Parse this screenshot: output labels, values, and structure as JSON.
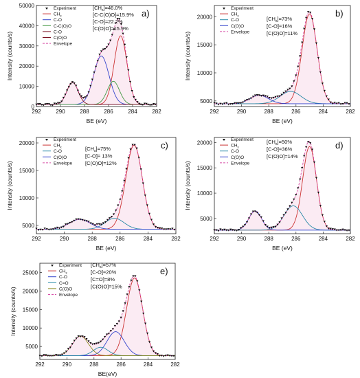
{
  "chart_data": [
    {
      "type": "line",
      "panel_label": "a)",
      "xlabel": "BE (eV)",
      "ylabel": "Intensity (counts/s)",
      "xlim": [
        292,
        282
      ],
      "x_reversed": true,
      "xticks": [
        292,
        290,
        288,
        286,
        284,
        282
      ],
      "ylim": [
        0,
        50000
      ],
      "yticks": [
        0,
        10000,
        20000,
        30000,
        40000,
        50000
      ],
      "baseline": 1000,
      "legend": [
        "Experiment",
        "CHx",
        "C-O",
        "C-C(O)O",
        "C-O",
        "C(O)O",
        "Envelope"
      ],
      "annotations": [
        "[CHx]=46.0%",
        "[C-C(O)O]=15.9%",
        "[C-O]=22.2%",
        "[C(O)O]=15.9%"
      ],
      "peaks": [
        {
          "name": "CHx",
          "center": 285.0,
          "height": 34000,
          "fwhm": 1.25,
          "color": "#cc3333"
        },
        {
          "name": "C-O",
          "center": 286.6,
          "height": 24000,
          "fwhm": 1.5,
          "color": "#3344cc"
        },
        {
          "name": "C-C(O)O",
          "center": 285.6,
          "height": 11500,
          "fwhm": 1.2,
          "color": "#449944"
        },
        {
          "name": "C(O)O",
          "center": 289.0,
          "height": 11000,
          "fwhm": 1.1,
          "color": "#7a1020"
        }
      ]
    },
    {
      "type": "line",
      "panel_label": "b)",
      "xlabel": "BE (eV)",
      "ylabel": "Intensity (counts/s)",
      "xlim": [
        292,
        282
      ],
      "x_reversed": true,
      "xticks": [
        292,
        290,
        288,
        286,
        284,
        282
      ],
      "ylim": [
        4000,
        22000
      ],
      "yticks": [
        5000,
        10000,
        15000,
        20000
      ],
      "baseline": 4500,
      "legend": [
        "Experiment",
        "CHx",
        "C-O",
        "C(O)O",
        "Envelope"
      ],
      "annotations": [
        "[CHx]=73%",
        "[C-O]=16%",
        "[C(O)O]=11%"
      ],
      "peaks": [
        {
          "name": "CHx",
          "center": 285.0,
          "height": 16000,
          "fwhm": 1.3,
          "color": "#cc3333"
        },
        {
          "name": "C-O",
          "center": 286.4,
          "height": 2200,
          "fwhm": 1.8,
          "color": "#2a8aa8"
        },
        {
          "name": "C(O)O",
          "center": 288.7,
          "height": 1500,
          "fwhm": 1.6,
          "color": "#3344cc"
        }
      ]
    },
    {
      "type": "line",
      "panel_label": "c)",
      "xlabel": "BE (eV)",
      "ylabel": "Intensity (counts/s)",
      "xlim": [
        292,
        282
      ],
      "x_reversed": true,
      "xticks": [
        292,
        290,
        288,
        286,
        284,
        282
      ],
      "ylim": [
        3500,
        21000
      ],
      "yticks": [
        5000,
        10000,
        15000,
        20000
      ],
      "baseline": 4300,
      "legend": [
        "Experiment",
        "CHx",
        "C-O",
        "C(O)O",
        "Envelope"
      ],
      "annotations": [
        "[CHx]=75%",
        "[C-O]= 13%",
        "[C(O)O]=12%"
      ],
      "peaks": [
        {
          "name": "CHx",
          "center": 285.0,
          "height": 15300,
          "fwhm": 1.4,
          "color": "#cc3333"
        },
        {
          "name": "C-O",
          "center": 286.4,
          "height": 2000,
          "fwhm": 1.6,
          "color": "#2a8aa8"
        },
        {
          "name": "C(O)O",
          "center": 288.9,
          "height": 1800,
          "fwhm": 1.8,
          "color": "#3344cc"
        }
      ]
    },
    {
      "type": "line",
      "panel_label": "d)",
      "xlabel": "BE (eV)",
      "ylabel": "Intensity (counts/s)",
      "xlim": [
        292,
        282
      ],
      "x_reversed": true,
      "xticks": [
        292,
        290,
        288,
        286,
        284,
        282
      ],
      "ylim": [
        2000,
        21000
      ],
      "yticks": [
        5000,
        10000,
        15000,
        20000
      ],
      "baseline": 2700,
      "legend": [
        "Experiment",
        "CHx",
        "C-O",
        "C(O)O",
        "Envelope"
      ],
      "annotations": [
        "[CHx]=50%",
        "[C-O]=36%",
        "[C(O)O]=14%"
      ],
      "peaks": [
        {
          "name": "CHx",
          "center": 285.0,
          "height": 16500,
          "fwhm": 1.2,
          "color": "#cc3333"
        },
        {
          "name": "C-O",
          "center": 286.2,
          "height": 4800,
          "fwhm": 1.6,
          "color": "#2a8aa8"
        },
        {
          "name": "C(O)O",
          "center": 289.0,
          "height": 3800,
          "fwhm": 1.1,
          "color": "#3344cc"
        }
      ]
    },
    {
      "type": "line",
      "panel_label": "e)",
      "xlabel": "BE(eV)",
      "ylabel": "Intensity (counts/s)",
      "xlim": [
        292,
        282
      ],
      "x_reversed": true,
      "xticks": [
        292,
        290,
        288,
        286,
        284,
        282
      ],
      "ylim": [
        1500,
        27500
      ],
      "yticks": [
        5000,
        10000,
        15000,
        20000,
        25000
      ],
      "baseline": 2500,
      "legend": [
        "Experiment",
        "CHx",
        "C-O",
        "C=O",
        "C(O)O",
        "Envelope"
      ],
      "annotations": [
        "[CHx]=57%",
        "[C-O]=20%",
        "[C=O]=8%",
        "[C(O)O]=15%"
      ],
      "peaks": [
        {
          "name": "CHx",
          "center": 285.0,
          "height": 21000,
          "fwhm": 1.4,
          "color": "#cc3333"
        },
        {
          "name": "C-O",
          "center": 286.4,
          "height": 6500,
          "fwhm": 1.5,
          "color": "#3344cc"
        },
        {
          "name": "C=O",
          "center": 287.5,
          "height": 2300,
          "fwhm": 1.3,
          "color": "#2a8aa8"
        },
        {
          "name": "C(O)O",
          "center": 289.0,
          "height": 5300,
          "fwhm": 1.4,
          "color": "#8a8a20"
        }
      ]
    }
  ]
}
